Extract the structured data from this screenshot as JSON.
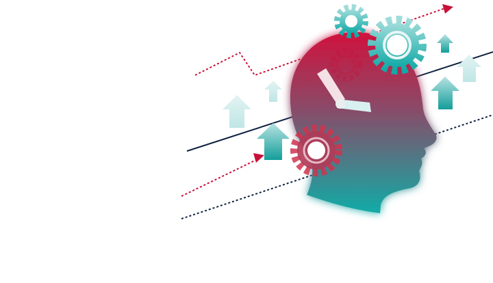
{
  "illustration": {
    "subject": "head-with-gears-clock-and-rising-arrows",
    "icons": [
      "head-silhouette-icon",
      "clock-hands-icon",
      "gear-icon",
      "arrow-up-icon",
      "trend-arrow-icon"
    ],
    "colors": {
      "crimson": "#c8113a",
      "teal": "#12aaa6",
      "navy": "#0e2240",
      "teal_pale": "#cfecec",
      "background": "#ffffff"
    }
  }
}
